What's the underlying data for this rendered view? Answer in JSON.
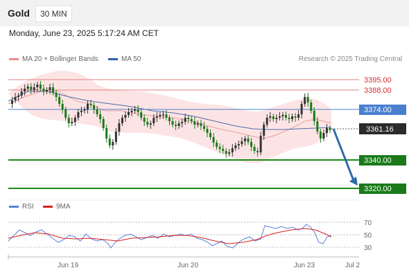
{
  "header": {
    "title": "Gold",
    "timeframe": "30 MIN"
  },
  "timestamp": "Monday, June 23, 2025 5:17:24 AM CET",
  "legend": {
    "bollinger": {
      "label": "MA 20 + Bollinger Bands",
      "color": "#f08a8a"
    },
    "ma50": {
      "label": "MA 50",
      "color": "#2f5fa8"
    }
  },
  "copyright": "Research © 2025 Trading Central",
  "price_levels": [
    {
      "label": "3395.00",
      "style": "resistance"
    },
    {
      "label": "3388.00",
      "style": "resistance"
    },
    {
      "label": "3374.00",
      "style": "pivot"
    },
    {
      "label": "3361.16",
      "style": "last"
    },
    {
      "label": "3340.00",
      "style": "support"
    },
    {
      "label": "3320.00",
      "style": "support"
    }
  ],
  "rsi_legend": {
    "rsi": {
      "label": "RSI",
      "color": "#5a7fd6"
    },
    "ma": {
      "label": "9MA",
      "color": "#d62020"
    }
  },
  "rsi_levels": [
    "70",
    "50",
    "30"
  ],
  "x_axis": [
    "Jun 19",
    "Jun 20",
    "Jun 23",
    "Jul 2"
  ],
  "colors": {
    "up": "#333333",
    "down": "#1a7a1a",
    "resistance": "#e08080",
    "pivot": "#4a7fd0",
    "support": "#1a8a1a",
    "arrow": "#2f6aa8"
  }
}
